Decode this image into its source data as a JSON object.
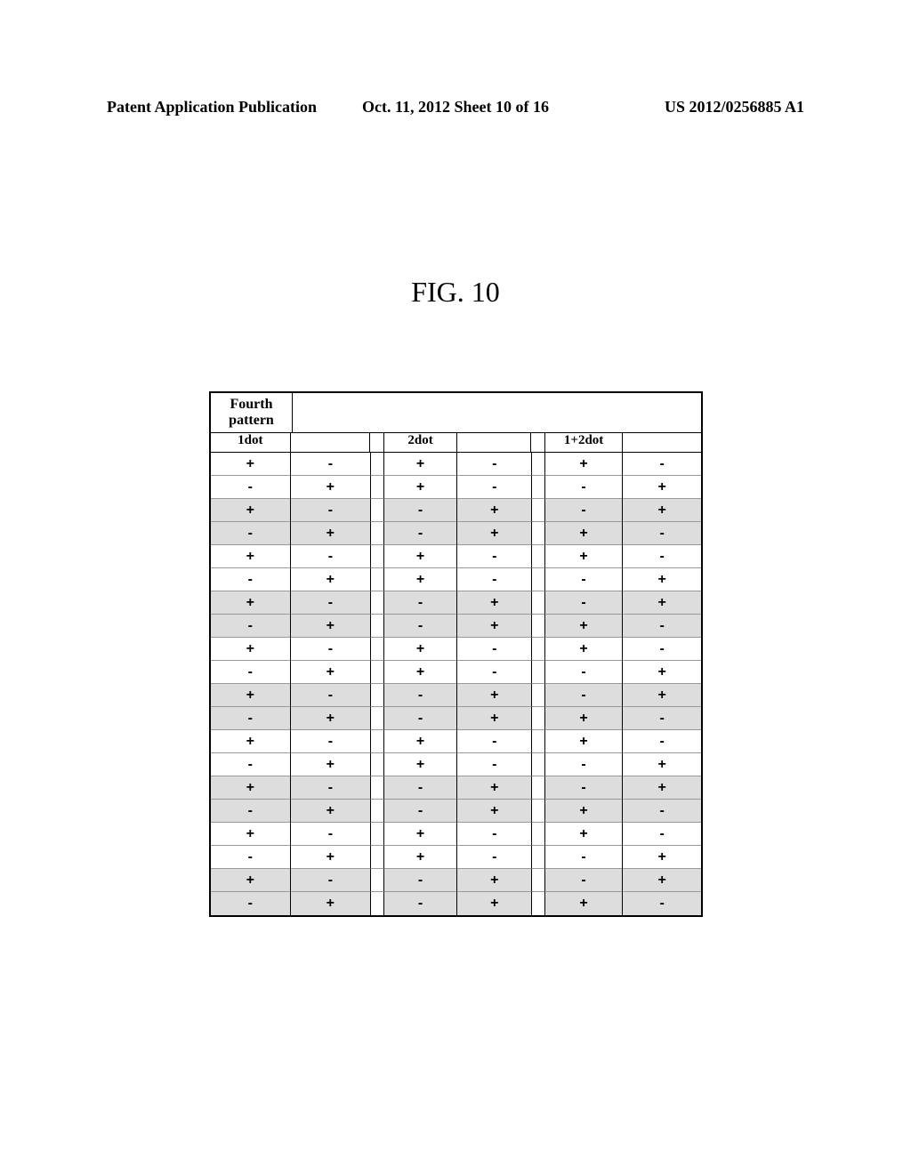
{
  "header": {
    "left": "Patent Application Publication",
    "center": "Oct. 11, 2012  Sheet 10 of 16",
    "right": "US 2012/0256885 A1"
  },
  "figure_label": "FIG. 10",
  "table": {
    "pattern_label": "Fourth pattern",
    "dot_headers": [
      "1dot",
      "",
      "2dot",
      "",
      "1+2dot",
      ""
    ],
    "columns": {
      "col1": [
        "+",
        "-",
        "+",
        "-",
        "+",
        "-",
        "+",
        "-",
        "+",
        "-",
        "+",
        "-",
        "+",
        "-",
        "+",
        "-",
        "+",
        "-",
        "+",
        "-"
      ],
      "col2": [
        "-",
        "+",
        "-",
        "+",
        "-",
        "+",
        "-",
        "+",
        "-",
        "+",
        "-",
        "+",
        "-",
        "+",
        "-",
        "+",
        "-",
        "+",
        "-",
        "+"
      ],
      "col3": [
        "+",
        "+",
        "-",
        "-",
        "+",
        "+",
        "-",
        "-",
        "+",
        "+",
        "-",
        "-",
        "+",
        "+",
        "-",
        "-",
        "+",
        "+",
        "-",
        "-"
      ],
      "col4": [
        "-",
        "-",
        "+",
        "+",
        "-",
        "-",
        "+",
        "+",
        "-",
        "-",
        "+",
        "+",
        "-",
        "-",
        "+",
        "+",
        "-",
        "-",
        "+",
        "+"
      ],
      "col5": [
        "+",
        "-",
        "-",
        "+",
        "+",
        "-",
        "-",
        "+",
        "+",
        "-",
        "-",
        "+",
        "+",
        "-",
        "-",
        "+",
        "+",
        "-",
        "-",
        "+"
      ],
      "col6": [
        "-",
        "+",
        "+",
        "-",
        "-",
        "+",
        "+",
        "-",
        "-",
        "+",
        "+",
        "-",
        "-",
        "+",
        "+",
        "-",
        "-",
        "+",
        "+",
        "-"
      ]
    },
    "shaded_rows": [
      2,
      3,
      6,
      7,
      10,
      11,
      14,
      15,
      18,
      19
    ],
    "styling": {
      "background_color": "#ffffff",
      "shaded_color": "#dddddd",
      "border_color": "#000000",
      "row_border_color": "#999999"
    }
  }
}
